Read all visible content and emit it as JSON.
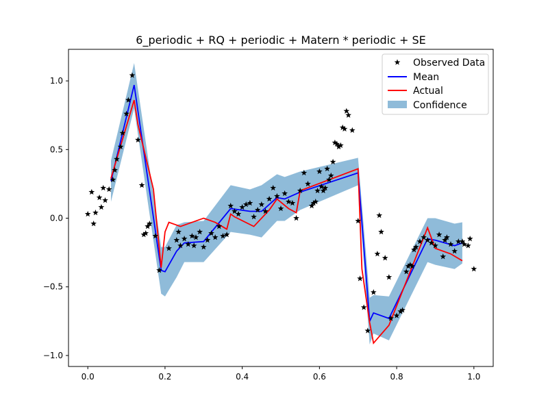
{
  "chart_data": {
    "type": "line",
    "title": "6_periodic + RQ + periodic + Matern * periodic + SE",
    "xlabel": "",
    "ylabel": "",
    "xlim": [
      -0.05,
      1.05
    ],
    "ylim": [
      -1.08,
      1.23
    ],
    "xticks": [
      0.0,
      0.2,
      0.4,
      0.6,
      0.8,
      1.0
    ],
    "xtick_labels": [
      "0.0",
      "0.2",
      "0.4",
      "0.6",
      "0.8",
      "1.0"
    ],
    "yticks": [
      -1.0,
      -0.5,
      0.0,
      0.5,
      1.0
    ],
    "ytick_labels": [
      "−1.0",
      "−0.5",
      "0.0",
      "0.5",
      "1.0"
    ],
    "legend": {
      "position": "top-right",
      "entries": [
        "Observed Data",
        "Mean",
        "Actual",
        "Confidence"
      ]
    },
    "colors": {
      "observed": "#000000",
      "mean": "#0000ff",
      "actual": "#ff0000",
      "confidence": "#1f77b4"
    },
    "observed": [
      [
        0.0,
        0.03
      ],
      [
        0.01,
        0.19
      ],
      [
        0.015,
        -0.04
      ],
      [
        0.02,
        0.04
      ],
      [
        0.03,
        0.15
      ],
      [
        0.035,
        0.08
      ],
      [
        0.04,
        0.22
      ],
      [
        0.045,
        0.13
      ],
      [
        0.055,
        0.21
      ],
      [
        0.065,
        0.28
      ],
      [
        0.07,
        0.35
      ],
      [
        0.075,
        0.43
      ],
      [
        0.085,
        0.52
      ],
      [
        0.09,
        0.62
      ],
      [
        0.1,
        0.76
      ],
      [
        0.105,
        0.86
      ],
      [
        0.115,
        1.04
      ],
      [
        0.13,
        0.57
      ],
      [
        0.14,
        0.24
      ],
      [
        0.145,
        -0.12
      ],
      [
        0.15,
        -0.11
      ],
      [
        0.155,
        -0.06
      ],
      [
        0.16,
        -0.04
      ],
      [
        0.175,
        -0.13
      ],
      [
        0.185,
        -0.38
      ],
      [
        0.21,
        -0.22
      ],
      [
        0.23,
        -0.16
      ],
      [
        0.235,
        -0.1
      ],
      [
        0.24,
        -0.2
      ],
      [
        0.25,
        -0.15
      ],
      [
        0.26,
        -0.19
      ],
      [
        0.27,
        -0.13
      ],
      [
        0.275,
        -0.2
      ],
      [
        0.28,
        -0.14
      ],
      [
        0.29,
        -0.1
      ],
      [
        0.3,
        -0.21
      ],
      [
        0.31,
        -0.16
      ],
      [
        0.32,
        -0.11
      ],
      [
        0.33,
        -0.14
      ],
      [
        0.34,
        -0.06
      ],
      [
        0.35,
        -0.13
      ],
      [
        0.36,
        -0.12
      ],
      [
        0.37,
        0.09
      ],
      [
        0.38,
        0.05
      ],
      [
        0.39,
        0.03
      ],
      [
        0.4,
        0.08
      ],
      [
        0.41,
        0.1
      ],
      [
        0.42,
        0.11
      ],
      [
        0.43,
        0.01
      ],
      [
        0.44,
        0.06
      ],
      [
        0.45,
        0.1
      ],
      [
        0.46,
        0.05
      ],
      [
        0.47,
        0.14
      ],
      [
        0.48,
        0.22
      ],
      [
        0.49,
        0.16
      ],
      [
        0.5,
        0.07
      ],
      [
        0.51,
        0.18
      ],
      [
        0.52,
        0.12
      ],
      [
        0.53,
        0.11
      ],
      [
        0.54,
        0.0
      ],
      [
        0.55,
        0.2
      ],
      [
        0.56,
        0.33
      ],
      [
        0.57,
        0.25
      ],
      [
        0.58,
        0.09
      ],
      [
        0.585,
        0.11
      ],
      [
        0.59,
        0.12
      ],
      [
        0.595,
        0.2
      ],
      [
        0.6,
        0.34
      ],
      [
        0.605,
        0.23
      ],
      [
        0.61,
        0.2
      ],
      [
        0.615,
        0.22
      ],
      [
        0.62,
        0.36
      ],
      [
        0.625,
        0.28
      ],
      [
        0.63,
        0.31
      ],
      [
        0.635,
        0.41
      ],
      [
        0.64,
        0.55
      ],
      [
        0.645,
        0.54
      ],
      [
        0.65,
        0.52
      ],
      [
        0.655,
        0.53
      ],
      [
        0.66,
        0.66
      ],
      [
        0.665,
        0.65
      ],
      [
        0.67,
        0.78
      ],
      [
        0.675,
        0.75
      ],
      [
        0.685,
        0.64
      ],
      [
        0.7,
        -0.02
      ],
      [
        0.705,
        -0.44
      ],
      [
        0.715,
        -0.65
      ],
      [
        0.725,
        -0.82
      ],
      [
        0.74,
        -0.54
      ],
      [
        0.75,
        -0.26
      ],
      [
        0.755,
        0.02
      ],
      [
        0.76,
        -0.1
      ],
      [
        0.77,
        -0.29
      ],
      [
        0.78,
        -0.43
      ],
      [
        0.785,
        -0.73
      ],
      [
        0.8,
        -0.71
      ],
      [
        0.81,
        -0.68
      ],
      [
        0.815,
        -0.67
      ],
      [
        0.825,
        -0.39
      ],
      [
        0.83,
        -0.35
      ],
      [
        0.835,
        -0.34
      ],
      [
        0.84,
        -0.35
      ],
      [
        0.845,
        -0.23
      ],
      [
        0.85,
        -0.21
      ],
      [
        0.86,
        -0.17
      ],
      [
        0.87,
        -0.14
      ],
      [
        0.88,
        -0.16
      ],
      [
        0.89,
        -0.18
      ],
      [
        0.9,
        -0.2
      ],
      [
        0.91,
        -0.12
      ],
      [
        0.92,
        -0.28
      ],
      [
        0.925,
        -0.16
      ],
      [
        0.93,
        -0.14
      ],
      [
        0.94,
        -0.19
      ],
      [
        0.95,
        -0.24
      ],
      [
        0.96,
        -0.17
      ],
      [
        0.97,
        -0.17
      ],
      [
        0.975,
        -0.19
      ],
      [
        0.985,
        -0.2
      ],
      [
        0.99,
        -0.15
      ],
      [
        1.0,
        -0.37
      ]
    ],
    "mean": {
      "x": [
        0.06,
        0.12,
        0.19,
        0.2,
        0.23,
        0.25,
        0.3,
        0.37,
        0.42,
        0.45,
        0.49,
        0.51,
        0.55,
        0.7,
        0.73,
        0.74,
        0.78,
        0.88,
        0.9,
        0.95,
        0.97
      ],
      "y": [
        0.27,
        0.97,
        -0.38,
        -0.39,
        -0.24,
        -0.18,
        -0.17,
        0.07,
        0.05,
        0.05,
        0.15,
        0.14,
        0.19,
        0.33,
        -0.75,
        -0.69,
        -0.73,
        -0.15,
        -0.16,
        -0.2,
        -0.18
      ]
    },
    "actual": {
      "x": [
        0.06,
        0.12,
        0.13,
        0.17,
        0.19,
        0.2,
        0.21,
        0.24,
        0.3,
        0.33,
        0.36,
        0.37,
        0.38,
        0.43,
        0.47,
        0.49,
        0.52,
        0.54,
        0.55,
        0.7,
        0.71,
        0.73,
        0.74,
        0.78,
        0.88,
        0.9,
        0.94,
        0.97
      ],
      "y": [
        0.29,
        0.86,
        0.68,
        0.21,
        -0.36,
        -0.1,
        -0.03,
        -0.06,
        0.0,
        -0.03,
        -0.08,
        0.03,
        0.01,
        -0.06,
        0.06,
        0.14,
        0.07,
        0.04,
        0.2,
        0.36,
        -0.37,
        -0.76,
        -0.91,
        -0.78,
        -0.07,
        -0.22,
        -0.26,
        -0.31
      ]
    },
    "confidence": {
      "x": [
        0.06,
        0.12,
        0.19,
        0.2,
        0.23,
        0.25,
        0.3,
        0.37,
        0.42,
        0.45,
        0.49,
        0.51,
        0.55,
        0.7,
        0.73,
        0.74,
        0.78,
        0.88,
        0.9,
        0.95,
        0.97
      ],
      "lower": [
        0.12,
        0.8,
        -0.55,
        -0.57,
        -0.43,
        -0.32,
        -0.32,
        -0.1,
        -0.12,
        -0.14,
        -0.02,
        -0.02,
        0.06,
        0.24,
        -0.92,
        -0.84,
        -0.89,
        -0.32,
        -0.34,
        -0.37,
        -0.33
      ],
      "upper": [
        0.42,
        1.13,
        -0.21,
        -0.21,
        -0.05,
        -0.03,
        -0.02,
        0.24,
        0.21,
        0.24,
        0.32,
        0.3,
        0.34,
        0.44,
        -0.58,
        -0.56,
        -0.57,
        0.0,
        0.0,
        -0.04,
        -0.03
      ]
    }
  }
}
